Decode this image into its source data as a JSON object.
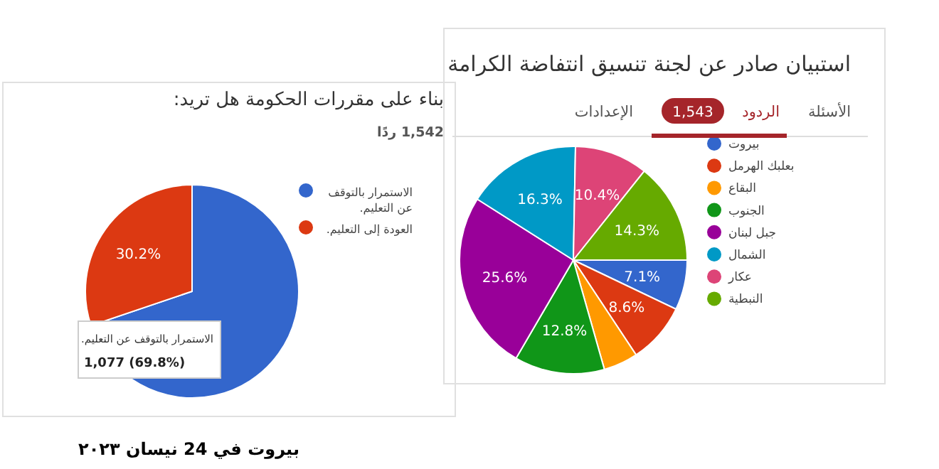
{
  "chart_data": [
    {
      "type": "pie",
      "title": "بناء على مقررات الحكومة هل تريد:",
      "subtitle": "1,542 ردًا",
      "categories": [
        "الاستمرار بالتوقف عن التعليم.",
        "العودة إلى التعليم."
      ],
      "values": [
        69.8,
        30.2
      ],
      "colors": [
        "#3366cc",
        "#dc3912"
      ],
      "value_labels": [
        null,
        "30.2%"
      ],
      "legend": "right",
      "annotations": [
        "الاستمرار بالتوقف عن التعليم.",
        "1,077 (69.8%)",
        "بيروت في 24 نيسان ٢٠٢٣"
      ]
    },
    {
      "type": "pie",
      "title": "استبيان  صادر عن لجنة تنسيق انتفاضة الكرامة",
      "categories": [
        "بيروت",
        "بعلبك الهرمل",
        "البقاع",
        "الجنوب",
        "جبل لبنان",
        "الشمال",
        "عكار",
        "النبطية"
      ],
      "values": [
        7.1,
        8.6,
        4.9,
        12.8,
        25.6,
        16.3,
        10.4,
        14.3
      ],
      "colors": [
        "#3366cc",
        "#dc3912",
        "#ff9900",
        "#109618",
        "#990099",
        "#0099c6",
        "#dd4477",
        "#66aa00"
      ],
      "value_labels": [
        "7.1%",
        "8.6%",
        null,
        "12.8%",
        "25.6%",
        "16.3%",
        "10.4%",
        "14.3%"
      ],
      "legend": "right",
      "annotations": [
        "الأسئلة",
        "الردود",
        "1,543",
        "الإعدادات"
      ]
    }
  ]
}
